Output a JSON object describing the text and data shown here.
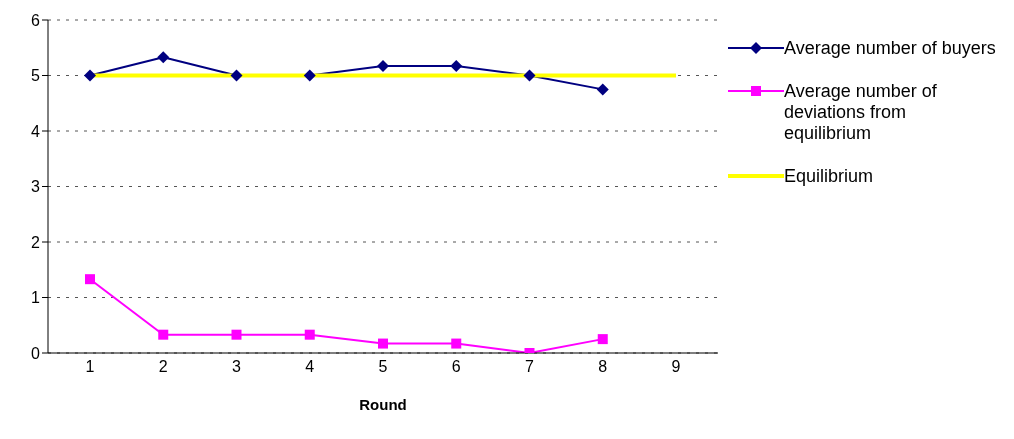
{
  "chart_data": {
    "type": "line",
    "xlabel": "Round",
    "categories": [
      "1",
      "2",
      "3",
      "4",
      "5",
      "6",
      "7",
      "8",
      "9"
    ],
    "series": [
      {
        "name": "Average number of buyers",
        "color": "#000080",
        "marker": "diamond",
        "values": [
          5,
          5.33,
          5,
          5,
          5.17,
          5.17,
          5,
          4.75,
          null
        ]
      },
      {
        "name": "Average number of deviations from equilibrium",
        "color": "#ff00ff",
        "marker": "square",
        "values": [
          1.33,
          0.33,
          0.33,
          0.33,
          0.17,
          0.17,
          0,
          0.25,
          null
        ]
      },
      {
        "name": "Equilibrium",
        "color": "#ffff00",
        "marker": "none",
        "values": [
          5,
          5,
          5,
          5,
          5,
          5,
          5,
          5,
          5
        ]
      }
    ],
    "ylim": [
      0,
      6
    ],
    "yticks": [
      0,
      1,
      2,
      3,
      4,
      5,
      6
    ],
    "grid": "y",
    "legend": "right",
    "line_style": "solid"
  }
}
